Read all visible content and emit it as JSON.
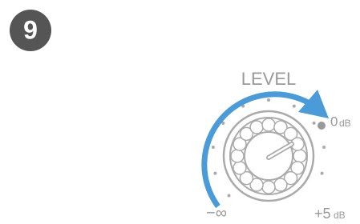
{
  "badge": "9",
  "knob": {
    "label": "LEVEL",
    "max_value": "0",
    "max_unit": "dB",
    "min_value": "−∞",
    "boost_value": "+5",
    "boost_unit": "dB"
  }
}
